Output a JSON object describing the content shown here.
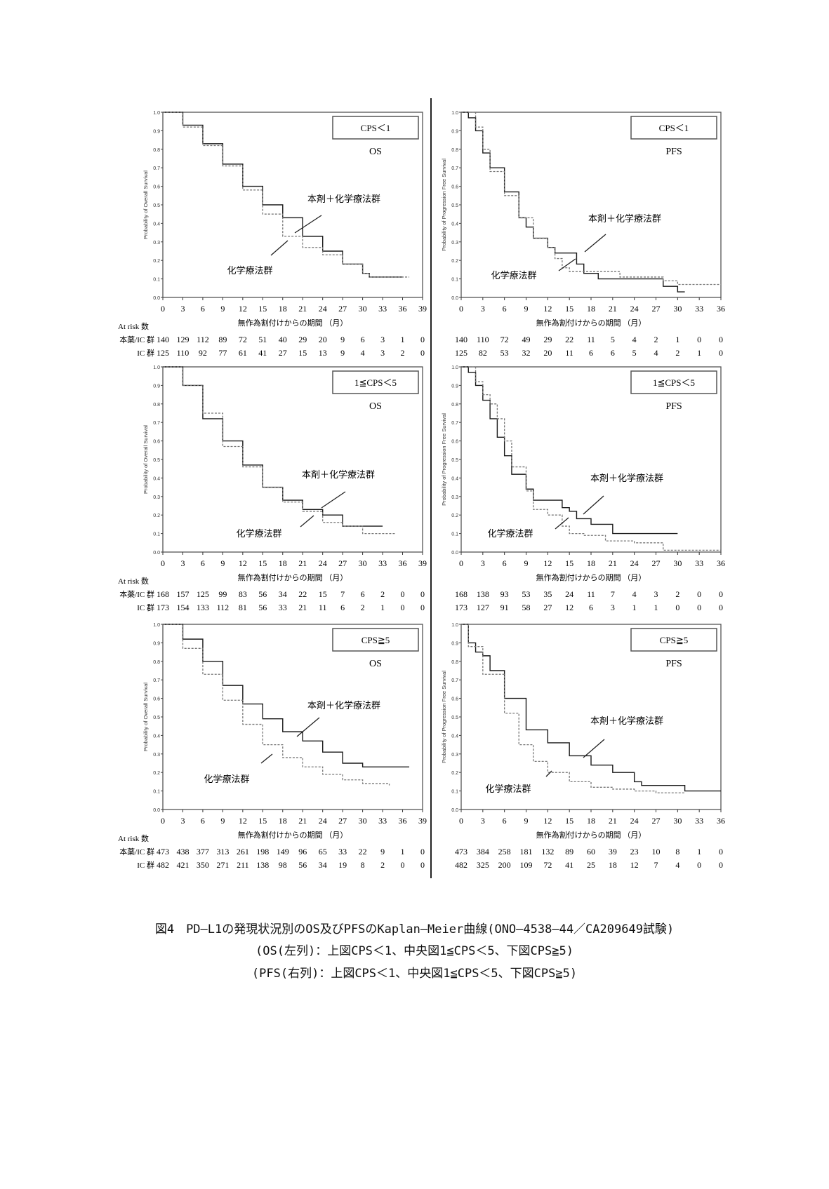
{
  "colors": {
    "treatment": "#1a1a1a",
    "chemo": "#777777",
    "frame": "#555555"
  },
  "common": {
    "x_label": "無作為割付けからの期間 （月）",
    "at_risk_label": "At risk 数",
    "row_treatment": "本薬/IC 群",
    "row_chemo": "IC 群",
    "treatment_annotation": "本剤＋化学療法群",
    "chemo_annotation": "化学療法群",
    "y_ticks": [
      "0.0",
      "0.1",
      "0.2",
      "0.3",
      "0.4",
      "0.5",
      "0.6",
      "0.7",
      "0.8",
      "0.9",
      "1.0"
    ]
  },
  "chart_data": [
    {
      "type": "line",
      "subgroup": "CPS＜1",
      "endpoint": "OS",
      "ylabel": "Probability of Overall Survival",
      "xlim": [
        0,
        39
      ],
      "ylim": [
        0,
        1
      ],
      "x_ticks": [
        "0",
        "3",
        "6",
        "9",
        "12",
        "15",
        "18",
        "21",
        "24",
        "27",
        "30",
        "33",
        "36",
        "39"
      ],
      "series": [
        {
          "name": "本剤＋化学療法群",
          "x": [
            0,
            3,
            6,
            9,
            12,
            15,
            18,
            21,
            24,
            27,
            30,
            31,
            36
          ],
          "y": [
            1,
            0.93,
            0.83,
            0.72,
            0.6,
            0.5,
            0.43,
            0.33,
            0.25,
            0.18,
            0.13,
            0.11,
            0.11
          ]
        },
        {
          "name": "化学療法群",
          "x": [
            0,
            3,
            6,
            9,
            12,
            15,
            18,
            21,
            24,
            27,
            30,
            31,
            37
          ],
          "y": [
            1,
            0.92,
            0.82,
            0.71,
            0.58,
            0.45,
            0.33,
            0.27,
            0.23,
            0.18,
            0.13,
            0.11,
            0.11
          ]
        }
      ],
      "at_risk": {
        "treatment": [
          "140",
          "129",
          "112",
          "89",
          "72",
          "51",
          "40",
          "29",
          "20",
          "9",
          "6",
          "3",
          "1",
          "0"
        ],
        "chemo": [
          "125",
          "110",
          "92",
          "77",
          "61",
          "41",
          "27",
          "15",
          "13",
          "9",
          "4",
          "3",
          "2",
          "0"
        ]
      }
    },
    {
      "type": "line",
      "subgroup": "CPS＜1",
      "endpoint": "PFS",
      "ylabel": "Probability of Progression Free Survival",
      "xlim": [
        0,
        36
      ],
      "ylim": [
        0,
        1
      ],
      "x_ticks": [
        "0",
        "3",
        "6",
        "9",
        "12",
        "15",
        "18",
        "21",
        "24",
        "27",
        "30",
        "33",
        "36"
      ],
      "series": [
        {
          "name": "本剤＋化学療法群",
          "x": [
            0,
            1,
            2,
            3,
            4,
            6,
            8,
            9,
            10,
            12,
            13,
            15,
            16,
            17,
            18,
            19,
            27,
            28,
            30,
            31
          ],
          "y": [
            1,
            0.97,
            0.9,
            0.78,
            0.7,
            0.57,
            0.43,
            0.38,
            0.32,
            0.27,
            0.24,
            0.24,
            0.18,
            0.13,
            0.13,
            0.1,
            0.1,
            0.06,
            0.03,
            0.03
          ]
        },
        {
          "name": "化学療法群",
          "x": [
            0,
            2,
            3,
            4,
            6,
            8,
            10,
            12,
            13,
            14,
            15,
            21,
            22,
            28,
            30,
            36
          ],
          "y": [
            1,
            0.92,
            0.8,
            0.68,
            0.55,
            0.43,
            0.32,
            0.27,
            0.21,
            0.16,
            0.14,
            0.14,
            0.11,
            0.09,
            0.07,
            0.07
          ]
        }
      ],
      "at_risk": {
        "treatment": [
          "140",
          "110",
          "72",
          "49",
          "29",
          "22",
          "11",
          "5",
          "4",
          "2",
          "1",
          "0",
          "0"
        ],
        "chemo": [
          "125",
          "82",
          "53",
          "32",
          "20",
          "11",
          "6",
          "6",
          "5",
          "4",
          "2",
          "1",
          "0"
        ]
      }
    },
    {
      "type": "line",
      "subgroup": "1≦CPS＜5",
      "endpoint": "OS",
      "ylabel": "Probability of Overall Survival",
      "xlim": [
        0,
        39
      ],
      "ylim": [
        0,
        1
      ],
      "x_ticks": [
        "0",
        "3",
        "6",
        "9",
        "12",
        "15",
        "18",
        "21",
        "24",
        "27",
        "30",
        "33",
        "36",
        "39"
      ],
      "series": [
        {
          "name": "本剤＋化学療法群",
          "x": [
            0,
            3,
            6,
            9,
            12,
            15,
            18,
            21,
            24,
            27,
            30,
            33
          ],
          "y": [
            1,
            0.9,
            0.72,
            0.6,
            0.47,
            0.35,
            0.28,
            0.23,
            0.2,
            0.14,
            0.14,
            0.14
          ]
        },
        {
          "name": "化学療法群",
          "x": [
            0,
            3,
            6,
            9,
            12,
            15,
            18,
            21,
            24,
            27,
            30,
            35
          ],
          "y": [
            1,
            0.9,
            0.75,
            0.57,
            0.46,
            0.35,
            0.27,
            0.22,
            0.16,
            0.14,
            0.1,
            0.1
          ]
        }
      ],
      "at_risk": {
        "treatment": [
          "168",
          "157",
          "125",
          "99",
          "83",
          "56",
          "34",
          "22",
          "15",
          "7",
          "6",
          "2",
          "0",
          "0"
        ],
        "chemo": [
          "173",
          "154",
          "133",
          "112",
          "81",
          "56",
          "33",
          "21",
          "11",
          "6",
          "2",
          "1",
          "0",
          "0"
        ]
      }
    },
    {
      "type": "line",
      "subgroup": "1≦CPS＜5",
      "endpoint": "PFS",
      "ylabel": "Probability of Progression Free Survival",
      "xlim": [
        0,
        36
      ],
      "ylim": [
        0,
        1
      ],
      "x_ticks": [
        "0",
        "3",
        "6",
        "9",
        "12",
        "15",
        "18",
        "21",
        "24",
        "27",
        "30",
        "33",
        "36"
      ],
      "series": [
        {
          "name": "本剤＋化学療法群",
          "x": [
            0,
            1,
            2,
            3,
            4,
            5,
            6,
            7,
            9,
            10,
            12,
            14,
            15,
            16,
            18,
            21,
            30
          ],
          "y": [
            1,
            0.97,
            0.9,
            0.82,
            0.72,
            0.62,
            0.52,
            0.42,
            0.34,
            0.28,
            0.28,
            0.24,
            0.22,
            0.18,
            0.15,
            0.1,
            0.1
          ]
        },
        {
          "name": "化学療法群",
          "x": [
            0,
            2,
            3,
            4,
            5,
            6,
            7,
            9,
            10,
            12,
            14,
            15,
            17,
            20,
            24,
            28,
            36
          ],
          "y": [
            1,
            0.92,
            0.85,
            0.8,
            0.72,
            0.6,
            0.46,
            0.33,
            0.23,
            0.2,
            0.14,
            0.1,
            0.09,
            0.06,
            0.05,
            0.01,
            0.01
          ]
        }
      ],
      "at_risk": {
        "treatment": [
          "168",
          "138",
          "93",
          "53",
          "35",
          "24",
          "11",
          "7",
          "4",
          "3",
          "2",
          "0",
          "0"
        ],
        "chemo": [
          "173",
          "127",
          "91",
          "58",
          "27",
          "12",
          "6",
          "3",
          "1",
          "1",
          "0",
          "0",
          "0"
        ]
      }
    },
    {
      "type": "line",
      "subgroup": "CPS≧5",
      "endpoint": "OS",
      "ylabel": "Probability of Overall Survival",
      "xlim": [
        0,
        39
      ],
      "ylim": [
        0,
        1
      ],
      "x_ticks": [
        "0",
        "3",
        "6",
        "9",
        "12",
        "15",
        "18",
        "21",
        "24",
        "27",
        "30",
        "33",
        "36",
        "39"
      ],
      "series": [
        {
          "name": "本剤＋化学療法群",
          "x": [
            0,
            3,
            6,
            9,
            12,
            15,
            18,
            21,
            24,
            27,
            30,
            37
          ],
          "y": [
            1,
            0.92,
            0.8,
            0.67,
            0.57,
            0.49,
            0.42,
            0.37,
            0.31,
            0.25,
            0.23,
            0.23
          ]
        },
        {
          "name": "化学療法群",
          "x": [
            0,
            3,
            6,
            9,
            12,
            15,
            18,
            21,
            24,
            27,
            30,
            34
          ],
          "y": [
            1,
            0.87,
            0.73,
            0.59,
            0.46,
            0.35,
            0.28,
            0.23,
            0.19,
            0.16,
            0.14,
            0.13
          ]
        }
      ],
      "at_risk": {
        "treatment": [
          "473",
          "438",
          "377",
          "313",
          "261",
          "198",
          "149",
          "96",
          "65",
          "33",
          "22",
          "9",
          "1",
          "0"
        ],
        "chemo": [
          "482",
          "421",
          "350",
          "271",
          "211",
          "138",
          "98",
          "56",
          "34",
          "19",
          "8",
          "2",
          "0",
          "0"
        ]
      }
    },
    {
      "type": "line",
      "subgroup": "CPS≧5",
      "endpoint": "PFS",
      "ylabel": "Probability of Progression Free Survival",
      "xlim": [
        0,
        36
      ],
      "ylim": [
        0,
        1
      ],
      "x_ticks": [
        "0",
        "3",
        "6",
        "9",
        "12",
        "15",
        "18",
        "21",
        "24",
        "27",
        "30",
        "33",
        "36"
      ],
      "series": [
        {
          "name": "本剤＋化学療法群",
          "x": [
            0,
            1,
            2,
            3,
            4,
            6,
            9,
            12,
            15,
            18,
            21,
            24,
            25,
            30,
            31,
            36
          ],
          "y": [
            1,
            0.9,
            0.85,
            0.83,
            0.75,
            0.6,
            0.43,
            0.36,
            0.29,
            0.24,
            0.2,
            0.15,
            0.13,
            0.13,
            0.1,
            0.1
          ]
        },
        {
          "name": "化学療法群",
          "x": [
            0,
            1,
            3,
            6,
            8,
            10,
            12,
            15,
            18,
            21,
            24,
            27,
            31
          ],
          "y": [
            1,
            0.88,
            0.73,
            0.52,
            0.35,
            0.26,
            0.2,
            0.15,
            0.12,
            0.11,
            0.1,
            0.09,
            0.09
          ]
        }
      ],
      "at_risk": {
        "treatment": [
          "473",
          "384",
          "258",
          "181",
          "132",
          "89",
          "60",
          "39",
          "23",
          "10",
          "8",
          "1",
          "0"
        ],
        "chemo": [
          "482",
          "325",
          "200",
          "109",
          "72",
          "41",
          "25",
          "18",
          "12",
          "7",
          "4",
          "0",
          "0"
        ]
      }
    }
  ],
  "caption": {
    "line1": "図4　PD―L1の発現状況別のOS及びPFSのKaplan―Meier曲線(ONO―4538―44／CA209649試験)",
    "line2": "(OS(左列)：上図CPS＜1、中央図1≦CPS＜5、下図CPS≧5)",
    "line3": "(PFS(右列)：上図CPS＜1、中央図1≦CPS＜5、下図CPS≧5)"
  }
}
